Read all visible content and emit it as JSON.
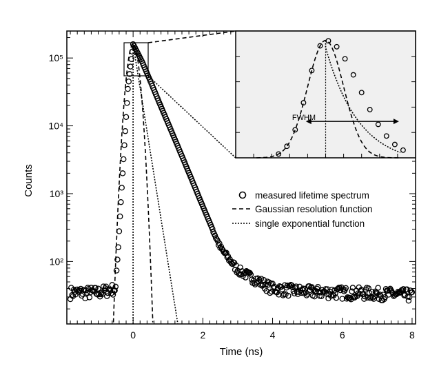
{
  "chart_data": {
    "type": "scatter",
    "xlabel": "Time (ns)",
    "ylabel": "Counts",
    "y_scale": "log",
    "xlim": [
      -1.9,
      8.1
    ],
    "ylim": [
      12,
      250000
    ],
    "x_ticks": [
      0,
      2,
      4,
      6,
      8
    ],
    "x_tick_labels": [
      "0",
      "2",
      "4",
      "6",
      "8"
    ],
    "y_ticks": [
      100,
      1000,
      10000,
      100000
    ],
    "y_tick_labels": [
      "10²",
      "10³",
      "10⁴",
      "10⁵"
    ],
    "grid": false,
    "legend_position": "right",
    "legend": [
      {
        "label": "measured lifetime spectrum",
        "marker": "circle"
      },
      {
        "label": "Gaussian resolution function",
        "marker": "dashed"
      },
      {
        "label": "single exponential function",
        "marker": "dotted"
      }
    ],
    "series": [
      {
        "name": "measured lifetime spectrum",
        "style": "open-circles",
        "description": "background ~35 counts, peak at t=0 ~160000, decay with lifetimes ~0.22 ns and ~0.55 ns",
        "x": [
          -1.8,
          -1.0,
          -0.5,
          -0.3,
          -0.15,
          0.0,
          0.25,
          0.5,
          0.75,
          1.0,
          1.5,
          2.0,
          2.5,
          3.0,
          4.0,
          5.0,
          6.0,
          7.0,
          8.0
        ],
        "y": [
          35,
          35,
          40,
          2000,
          35000,
          160000,
          90000,
          45000,
          22000,
          11000,
          2700,
          650,
          160,
          75,
          40,
          36,
          35,
          34,
          32
        ]
      },
      {
        "name": "Gaussian resolution function",
        "style": "dashed",
        "peak_x": 0.0,
        "peak_y": 160000,
        "sigma_ns": 0.13
      },
      {
        "name": "single exponential function",
        "style": "dotted",
        "peak_x": 0.0,
        "peak_y": 160000,
        "lifetime_ns": 0.135
      }
    ],
    "inset": {
      "label": "FWHM",
      "description": "zoom of the peak region marked by a rectangle on the main plot"
    }
  }
}
